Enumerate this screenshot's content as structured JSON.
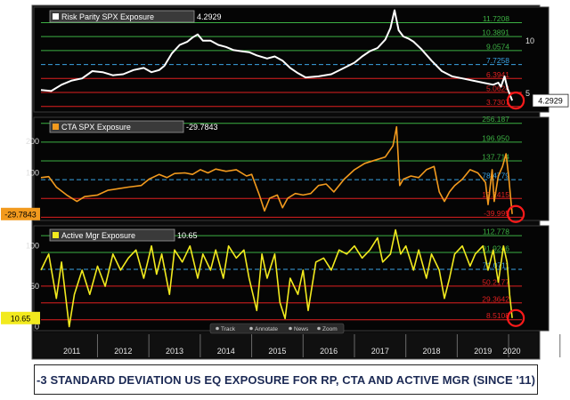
{
  "chart_data": [
    {
      "type": "line",
      "title": "",
      "series": [
        {
          "name": "Risk Parity SPX Exposure",
          "current_value": "4.2929",
          "color": "#ffffff"
        }
      ],
      "x_ticks": [
        "2011",
        "2012",
        "2013",
        "2014",
        "2015",
        "2016",
        "2017",
        "2018",
        "2019",
        "2020"
      ],
      "y_ticks": [
        {
          "value": 5,
          "label": "5"
        },
        {
          "value": 10,
          "label": "10"
        }
      ],
      "ylim": [
        3.2,
        13.2
      ],
      "level_lines": [
        {
          "value": 11.7208,
          "label": "11.7208",
          "color": "#3cb043",
          "style": "solid"
        },
        {
          "value": 10.3891,
          "label": "10.3891",
          "color": "#3cb043",
          "style": "solid"
        },
        {
          "value": 9.0574,
          "label": "9.0574",
          "color": "#3cb043",
          "style": "solid"
        },
        {
          "value": 7.7258,
          "label": "7.7258",
          "color": "#3aa3e3",
          "style": "dashed"
        },
        {
          "value": 6.3941,
          "label": "6.3941",
          "color": "#e02020",
          "style": "solid"
        },
        {
          "value": 5.0624,
          "label": "5.0624",
          "color": "#e02020",
          "style": "solid"
        },
        {
          "value": 3.7307,
          "label": "3.7307",
          "color": "#e02020",
          "style": "solid"
        }
      ],
      "points": [
        [
          2010.9,
          5.3
        ],
        [
          2011.1,
          5.2
        ],
        [
          2011.3,
          5.8
        ],
        [
          2011.5,
          6.2
        ],
        [
          2011.7,
          6.4
        ],
        [
          2011.9,
          7.1
        ],
        [
          2012.1,
          7.0
        ],
        [
          2012.3,
          6.7
        ],
        [
          2012.5,
          6.8
        ],
        [
          2012.7,
          7.2
        ],
        [
          2012.9,
          7.4
        ],
        [
          2013.05,
          7.0
        ],
        [
          2013.2,
          7.2
        ],
        [
          2013.3,
          7.6
        ],
        [
          2013.45,
          8.8
        ],
        [
          2013.6,
          9.6
        ],
        [
          2013.75,
          9.9
        ],
        [
          2013.85,
          10.3
        ],
        [
          2013.95,
          10.6
        ],
        [
          2014.05,
          10.0
        ],
        [
          2014.2,
          10.0
        ],
        [
          2014.35,
          9.6
        ],
        [
          2014.5,
          9.4
        ],
        [
          2014.65,
          9.1
        ],
        [
          2014.8,
          9.0
        ],
        [
          2014.95,
          8.9
        ],
        [
          2015.1,
          8.6
        ],
        [
          2015.3,
          8.3
        ],
        [
          2015.45,
          8.5
        ],
        [
          2015.6,
          8.1
        ],
        [
          2015.75,
          7.4
        ],
        [
          2015.9,
          6.9
        ],
        [
          2016.05,
          6.5
        ],
        [
          2016.3,
          6.6
        ],
        [
          2016.55,
          6.8
        ],
        [
          2016.8,
          7.4
        ],
        [
          2017.0,
          7.9
        ],
        [
          2017.15,
          8.5
        ],
        [
          2017.3,
          9.0
        ],
        [
          2017.45,
          9.3
        ],
        [
          2017.6,
          10.1
        ],
        [
          2017.7,
          11.2
        ],
        [
          2017.78,
          12.9
        ],
        [
          2017.86,
          11.0
        ],
        [
          2017.95,
          10.4
        ],
        [
          2018.05,
          10.2
        ],
        [
          2018.15,
          9.9
        ],
        [
          2018.3,
          9.2
        ],
        [
          2018.5,
          8.1
        ],
        [
          2018.7,
          7.1
        ],
        [
          2018.9,
          6.6
        ],
        [
          2019.1,
          6.4
        ],
        [
          2019.3,
          6.2
        ],
        [
          2019.5,
          6.0
        ],
        [
          2019.7,
          5.8
        ],
        [
          2019.8,
          6.0
        ],
        [
          2019.85,
          5.6
        ],
        [
          2019.92,
          6.6
        ],
        [
          2019.98,
          5.4
        ],
        [
          2020.03,
          4.8
        ],
        [
          2020.07,
          4.29
        ]
      ]
    },
    {
      "type": "line",
      "title": "",
      "series": [
        {
          "name": "CTA SPX Exposure",
          "current_value": "-29.7843",
          "color": "#f29a1e"
        }
      ],
      "x_ticks": [
        "2011",
        "2012",
        "2013",
        "2014",
        "2015",
        "2016",
        "2017",
        "2018",
        "2019",
        "2020"
      ],
      "y_ticks": [
        {
          "value": 200,
          "label": "200"
        },
        {
          "value": 100,
          "label": "100"
        }
      ],
      "ylim": [
        -50,
        275
      ],
      "level_lines": [
        {
          "value": 256.187,
          "label": "256.187",
          "color": "#3cb043",
          "style": "solid"
        },
        {
          "value": 196.95,
          "label": "196.950",
          "color": "#3cb043",
          "style": "solid"
        },
        {
          "value": 137.714,
          "label": "137.714",
          "color": "#3cb043",
          "style": "solid"
        },
        {
          "value": 78.4779,
          "label": "78.4779",
          "color": "#3aa3e3",
          "style": "dashed"
        },
        {
          "value": 19.2415,
          "label": "19.2415",
          "color": "#e02020",
          "style": "solid"
        },
        {
          "value": -39.995,
          "label": "-39.995",
          "color": "#e02020",
          "style": "solid"
        }
      ],
      "points": [
        [
          2010.9,
          85
        ],
        [
          2011.05,
          88
        ],
        [
          2011.2,
          55
        ],
        [
          2011.4,
          30
        ],
        [
          2011.6,
          10
        ],
        [
          2011.75,
          25
        ],
        [
          2012.0,
          30
        ],
        [
          2012.2,
          45
        ],
        [
          2012.4,
          50
        ],
        [
          2012.6,
          55
        ],
        [
          2012.85,
          60
        ],
        [
          2013.0,
          80
        ],
        [
          2013.2,
          95
        ],
        [
          2013.35,
          85
        ],
        [
          2013.5,
          98
        ],
        [
          2013.7,
          100
        ],
        [
          2013.85,
          95
        ],
        [
          2014.0,
          110
        ],
        [
          2014.15,
          100
        ],
        [
          2014.3,
          112
        ],
        [
          2014.5,
          105
        ],
        [
          2014.7,
          110
        ],
        [
          2014.9,
          90
        ],
        [
          2015.0,
          95
        ],
        [
          2015.15,
          30
        ],
        [
          2015.25,
          -20
        ],
        [
          2015.35,
          20
        ],
        [
          2015.5,
          30
        ],
        [
          2015.6,
          -10
        ],
        [
          2015.7,
          20
        ],
        [
          2015.85,
          35
        ],
        [
          2016.0,
          30
        ],
        [
          2016.15,
          35
        ],
        [
          2016.3,
          60
        ],
        [
          2016.45,
          65
        ],
        [
          2016.6,
          40
        ],
        [
          2016.8,
          80
        ],
        [
          2017.0,
          110
        ],
        [
          2017.2,
          130
        ],
        [
          2017.4,
          140
        ],
        [
          2017.6,
          150
        ],
        [
          2017.75,
          185
        ],
        [
          2017.82,
          245
        ],
        [
          2017.88,
          60
        ],
        [
          2017.95,
          80
        ],
        [
          2018.1,
          90
        ],
        [
          2018.25,
          85
        ],
        [
          2018.4,
          110
        ],
        [
          2018.55,
          120
        ],
        [
          2018.65,
          40
        ],
        [
          2018.75,
          10
        ],
        [
          2018.85,
          40
        ],
        [
          2018.95,
          60
        ],
        [
          2019.1,
          80
        ],
        [
          2019.25,
          110
        ],
        [
          2019.4,
          100
        ],
        [
          2019.55,
          70
        ],
        [
          2019.6,
          0
        ],
        [
          2019.68,
          110
        ],
        [
          2019.72,
          10
        ],
        [
          2019.8,
          90
        ],
        [
          2019.88,
          120
        ],
        [
          2019.95,
          160
        ],
        [
          2020.0,
          90
        ],
        [
          2020.04,
          20
        ],
        [
          2020.07,
          -29.78
        ]
      ]
    },
    {
      "type": "line",
      "title": "",
      "series": [
        {
          "name": "Active Mgr Exposure",
          "current_value": "10.65",
          "color": "#f2ea1e"
        }
      ],
      "x_ticks": [
        "2011",
        "2012",
        "2013",
        "2014",
        "2015",
        "2016",
        "2017",
        "2018",
        "2019",
        "2020"
      ],
      "y_ticks": [
        {
          "value": 100,
          "label": "100"
        },
        {
          "value": 50,
          "label": "50"
        },
        {
          "value": 0,
          "label": "0"
        }
      ],
      "ylim": [
        -5,
        125
      ],
      "level_lines": [
        {
          "value": 112.778,
          "label": "112.778",
          "color": "#3cb043",
          "style": "solid"
        },
        {
          "value": 91.9246,
          "label": "91.9246",
          "color": "#3cb043",
          "style": "solid"
        },
        {
          "value": 71.0711,
          "label": "71.0711",
          "color": "#3aa3e3",
          "style": "dashed"
        },
        {
          "value": 50.2177,
          "label": "50.2177",
          "color": "#e02020",
          "style": "solid"
        },
        {
          "value": 29.3642,
          "label": "29.3642",
          "color": "#e02020",
          "style": "solid"
        },
        {
          "value": 8.5108,
          "label": "8.5108",
          "color": "#e02020",
          "style": "solid"
        }
      ],
      "points": [
        [
          2010.9,
          70
        ],
        [
          2011.05,
          90
        ],
        [
          2011.2,
          35
        ],
        [
          2011.3,
          80
        ],
        [
          2011.45,
          0
        ],
        [
          2011.55,
          40
        ],
        [
          2011.7,
          70
        ],
        [
          2011.85,
          40
        ],
        [
          2012.0,
          75
        ],
        [
          2012.15,
          50
        ],
        [
          2012.3,
          90
        ],
        [
          2012.45,
          70
        ],
        [
          2012.6,
          85
        ],
        [
          2012.75,
          95
        ],
        [
          2012.9,
          60
        ],
        [
          2013.05,
          100
        ],
        [
          2013.15,
          65
        ],
        [
          2013.25,
          90
        ],
        [
          2013.4,
          40
        ],
        [
          2013.5,
          95
        ],
        [
          2013.65,
          80
        ],
        [
          2013.8,
          100
        ],
        [
          2013.95,
          60
        ],
        [
          2014.05,
          90
        ],
        [
          2014.2,
          70
        ],
        [
          2014.3,
          95
        ],
        [
          2014.45,
          60
        ],
        [
          2014.55,
          100
        ],
        [
          2014.7,
          85
        ],
        [
          2014.85,
          95
        ],
        [
          2014.95,
          60
        ],
        [
          2015.1,
          20
        ],
        [
          2015.2,
          90
        ],
        [
          2015.3,
          60
        ],
        [
          2015.45,
          90
        ],
        [
          2015.55,
          30
        ],
        [
          2015.65,
          10
        ],
        [
          2015.75,
          60
        ],
        [
          2015.9,
          40
        ],
        [
          2016.0,
          70
        ],
        [
          2016.1,
          20
        ],
        [
          2016.25,
          80
        ],
        [
          2016.4,
          85
        ],
        [
          2016.55,
          70
        ],
        [
          2016.7,
          95
        ],
        [
          2016.85,
          90
        ],
        [
          2017.0,
          100
        ],
        [
          2017.15,
          85
        ],
        [
          2017.3,
          95
        ],
        [
          2017.45,
          110
        ],
        [
          2017.55,
          80
        ],
        [
          2017.7,
          90
        ],
        [
          2017.8,
          120
        ],
        [
          2017.9,
          90
        ],
        [
          2018.0,
          100
        ],
        [
          2018.15,
          70
        ],
        [
          2018.25,
          95
        ],
        [
          2018.4,
          60
        ],
        [
          2018.5,
          90
        ],
        [
          2018.65,
          70
        ],
        [
          2018.75,
          35
        ],
        [
          2018.85,
          60
        ],
        [
          2018.95,
          90
        ],
        [
          2019.1,
          100
        ],
        [
          2019.25,
          75
        ],
        [
          2019.35,
          90
        ],
        [
          2019.5,
          100
        ],
        [
          2019.6,
          70
        ],
        [
          2019.7,
          95
        ],
        [
          2019.8,
          55
        ],
        [
          2019.9,
          100
        ],
        [
          2019.97,
          80
        ],
        [
          2020.02,
          40
        ],
        [
          2020.07,
          10.65
        ]
      ]
    }
  ],
  "toolbar": {
    "track": "Track",
    "annotate": "Annotate",
    "news": "News",
    "zoom": "Zoom"
  },
  "caption": "-3 STANDARD DEVIATION US EQ EXPOSURE FOR RP, CTA AND ACTIVE MGR (SINCE '11)"
}
